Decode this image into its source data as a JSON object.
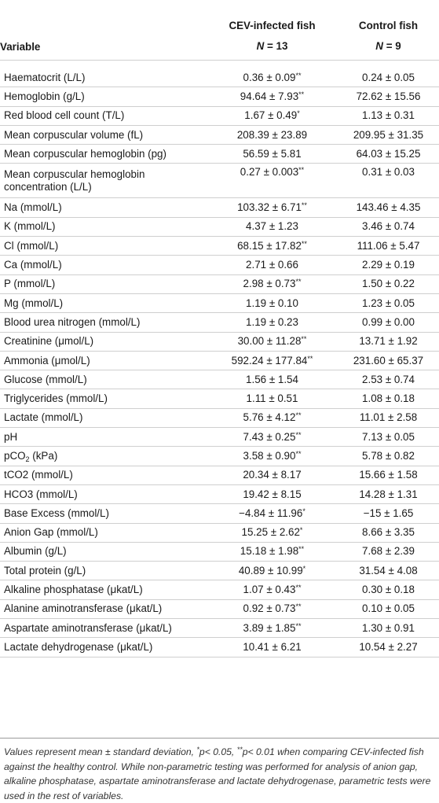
{
  "header": {
    "variable_label": "Variable",
    "group1_label": "CEV-infected fish",
    "group2_label": "Control fish",
    "group1_n_var": "N",
    "group1_n_val": " = 13",
    "group2_n_var": "N",
    "group2_n_val": " = 9"
  },
  "rows": [
    {
      "variable": "Haematocrit (L/L)",
      "cev": "0.36 ± 0.09",
      "cev_sig": "**",
      "control": "0.24 ± 0.05"
    },
    {
      "variable": "Hemoglobin (g/L)",
      "cev": "94.64 ± 7.93",
      "cev_sig": "**",
      "control": "72.62 ± 15.56"
    },
    {
      "variable": "Red blood cell count (T/L)",
      "cev": "1.67 ± 0.49",
      "cev_sig": "*",
      "control": "1.13 ± 0.31"
    },
    {
      "variable": "Mean corpuscular volume (fL)",
      "cev": "208.39 ± 23.89",
      "cev_sig": "",
      "control": "209.95 ± 31.35"
    },
    {
      "variable": "Mean corpuscular hemoglobin (pg)",
      "cev": "56.59 ± 5.81",
      "cev_sig": "",
      "control": "64.03 ± 15.25"
    },
    {
      "variable_line1": "Mean corpuscular hemoglobin",
      "variable_line2": "concentration (L/L)",
      "cev": "0.27 ± 0.003",
      "cev_sig": "**",
      "control": "0.31 ± 0.03"
    },
    {
      "variable": "Na (mmol/L)",
      "cev": "103.32 ± 6.71",
      "cev_sig": "**",
      "control": "143.46 ± 4.35"
    },
    {
      "variable": "K (mmol/L)",
      "cev": "4.37 ± 1.23",
      "cev_sig": "",
      "control": "3.46 ± 0.74"
    },
    {
      "variable": "Cl (mmol/L)",
      "cev": "68.15 ± 17.82",
      "cev_sig": "**",
      "control": "111.06 ± 5.47"
    },
    {
      "variable": "Ca (mmol/L)",
      "cev": "2.71 ± 0.66",
      "cev_sig": "",
      "control": "2.29 ± 0.19"
    },
    {
      "variable": "P (mmol/L)",
      "cev": "2.98 ± 0.73",
      "cev_sig": "**",
      "control": "1.50 ± 0.22"
    },
    {
      "variable": "Mg (mmol/L)",
      "cev": "1.19 ± 0.10",
      "cev_sig": "",
      "control": "1.23 ± 0.05"
    },
    {
      "variable": "Blood urea nitrogen (mmol/L)",
      "cev": "1.19 ± 0.23",
      "cev_sig": "",
      "control": "0.99 ± 0.00"
    },
    {
      "variable": "Creatinine (μmol/L)",
      "cev": "30.00 ± 11.28",
      "cev_sig": "**",
      "control": "13.71 ± 1.92"
    },
    {
      "variable": "Ammonia (μmol/L)",
      "cev": "592.24 ± 177.84",
      "cev_sig": "**",
      "control": "231.60 ± 65.37"
    },
    {
      "variable": "Glucose (mmol/L)",
      "cev": "1.56 ± 1.54",
      "cev_sig": "",
      "control": "2.53 ± 0.74"
    },
    {
      "variable": "Triglycerides (mmol/L)",
      "cev": "1.11 ± 0.51",
      "cev_sig": "",
      "control": "1.08 ± 0.18"
    },
    {
      "variable": "Lactate (mmol/L)",
      "cev": "5.76 ± 4.12",
      "cev_sig": "**",
      "control": "11.01 ± 2.58"
    },
    {
      "variable": "pH",
      "cev": "7.43 ± 0.25",
      "cev_sig": "**",
      "control": "7.13 ± 0.05"
    },
    {
      "variable_base": "pCO",
      "variable_sub": "2",
      "variable_tail": " (kPa)",
      "cev": "3.58 ± 0.90",
      "cev_sig": "**",
      "control": "5.78 ± 0.82"
    },
    {
      "variable": "tCO2 (mmol/L)",
      "cev": "20.34 ± 8.17",
      "cev_sig": "",
      "control": "15.66 ± 1.58"
    },
    {
      "variable": "HCO3 (mmol/L)",
      "cev": "19.42 ± 8.15",
      "cev_sig": "",
      "control": "14.28 ± 1.31"
    },
    {
      "variable": "Base Excess (mmol/L)",
      "cev": "−4.84 ± 11.96",
      "cev_sig": "*",
      "control": "−15 ± 1.65"
    },
    {
      "variable": "Anion Gap (mmol/L)",
      "cev": "15.25 ± 2.62",
      "cev_sig": "*",
      "control": "8.66 ± 3.35"
    },
    {
      "variable": "Albumin (g/L)",
      "cev": "15.18 ± 1.98",
      "cev_sig": "**",
      "control": "7.68 ± 2.39"
    },
    {
      "variable": "Total protein (g/L)",
      "cev": "40.89 ± 10.99",
      "cev_sig": "*",
      "control": "31.54 ± 4.08"
    },
    {
      "variable": "Alkaline phosphatase (μkat/L)",
      "cev": "1.07 ± 0.43",
      "cev_sig": "**",
      "control": "0.30 ± 0.18"
    },
    {
      "variable": "Alanine aminotransferase (μkat/L)",
      "cev": "0.92 ± 0.73",
      "cev_sig": "**",
      "control": "0.10 ± 0.05"
    },
    {
      "variable": "Aspartate aminotransferase (μkat/L)",
      "cev": "3.89 ± 1.85",
      "cev_sig": "**",
      "control": "1.30 ± 0.91"
    },
    {
      "variable": "Lactate dehydrogenase (μkat/L)",
      "cev": "10.41 ± 6.21",
      "cev_sig": "",
      "control": "10.54 ± 2.27"
    }
  ],
  "footnote": {
    "part1": "Values represent mean ± standard deviation, ",
    "sig1": "*",
    "part2": "p< 0.05, ",
    "sig2": "**",
    "part3": "p< 0.01 when comparing CEV-infected fish against the healthy control. While non-parametric testing was performed for analysis of anion gap, alkaline phosphatase, aspartate aminotransferase and lactate dehydrogenase, parametric tests were used in the rest of variables."
  }
}
